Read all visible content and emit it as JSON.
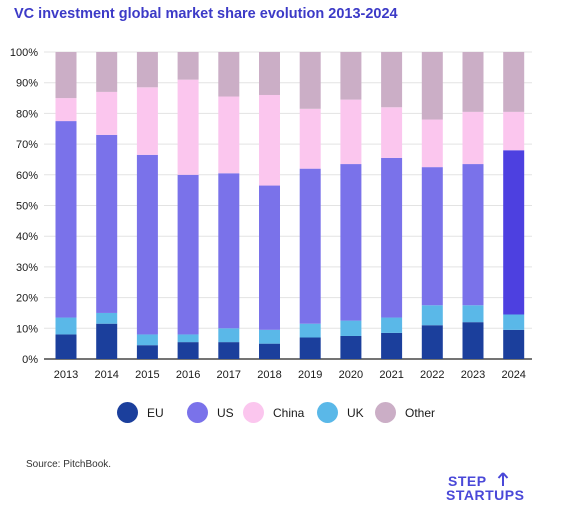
{
  "title": "VC investment global market share evolution 2013-2024",
  "source": "Source: PitchBook.",
  "logo": {
    "line1": "STEP",
    "line2": "STARTUPS"
  },
  "colors": {
    "EU": "#1b3f9c",
    "US": "#7a72ea",
    "China": "#fbc6ee",
    "UK": "#5ab8e8",
    "Other": "#cbaec6",
    "US_2024": "#4d40e0",
    "grid": "#e3e3e3",
    "axis": "#222222"
  },
  "chart_data": {
    "type": "bar",
    "stacked": true,
    "title": "VC investment global market share evolution 2013-2024",
    "categories": [
      "2013",
      "2014",
      "2015",
      "2016",
      "2017",
      "2018",
      "2019",
      "2020",
      "2021",
      "2022",
      "2023",
      "2024"
    ],
    "y_tick_labels": [
      "0%",
      "10%",
      "20%",
      "30%",
      "40%",
      "50%",
      "60%",
      "70%",
      "80%",
      "90%",
      "100%"
    ],
    "ylim": [
      0,
      100
    ],
    "grid": true,
    "legend_position": "bottom",
    "series": [
      {
        "name": "EU",
        "values": [
          8,
          11.5,
          4.5,
          5.5,
          5.5,
          5,
          7,
          7.5,
          8.5,
          11,
          12,
          9.5
        ]
      },
      {
        "name": "UK",
        "values": [
          5.5,
          3.5,
          3.5,
          2.5,
          4.5,
          4.5,
          4.5,
          5,
          5,
          6.5,
          5.5,
          5
        ]
      },
      {
        "name": "US",
        "values": [
          64,
          58,
          58.5,
          52,
          50.5,
          47,
          50.5,
          51,
          52,
          45,
          46,
          53.5
        ]
      },
      {
        "name": "China",
        "values": [
          7.5,
          14,
          22,
          31,
          25,
          29.5,
          19.5,
          21,
          16.5,
          15.5,
          17,
          12.5
        ]
      },
      {
        "name": "Other",
        "values": [
          15,
          13,
          11.5,
          9,
          14.5,
          14,
          18.5,
          15.5,
          18,
          22,
          19.5,
          19.5
        ]
      }
    ]
  },
  "legend": [
    {
      "label": "EU",
      "color": "#1b3f9c"
    },
    {
      "label": "US",
      "color": "#7a72ea"
    },
    {
      "label": "China",
      "color": "#fbc6ee"
    },
    {
      "label": "UK",
      "color": "#5ab8e8"
    },
    {
      "label": "Other",
      "color": "#cbaec6"
    }
  ]
}
